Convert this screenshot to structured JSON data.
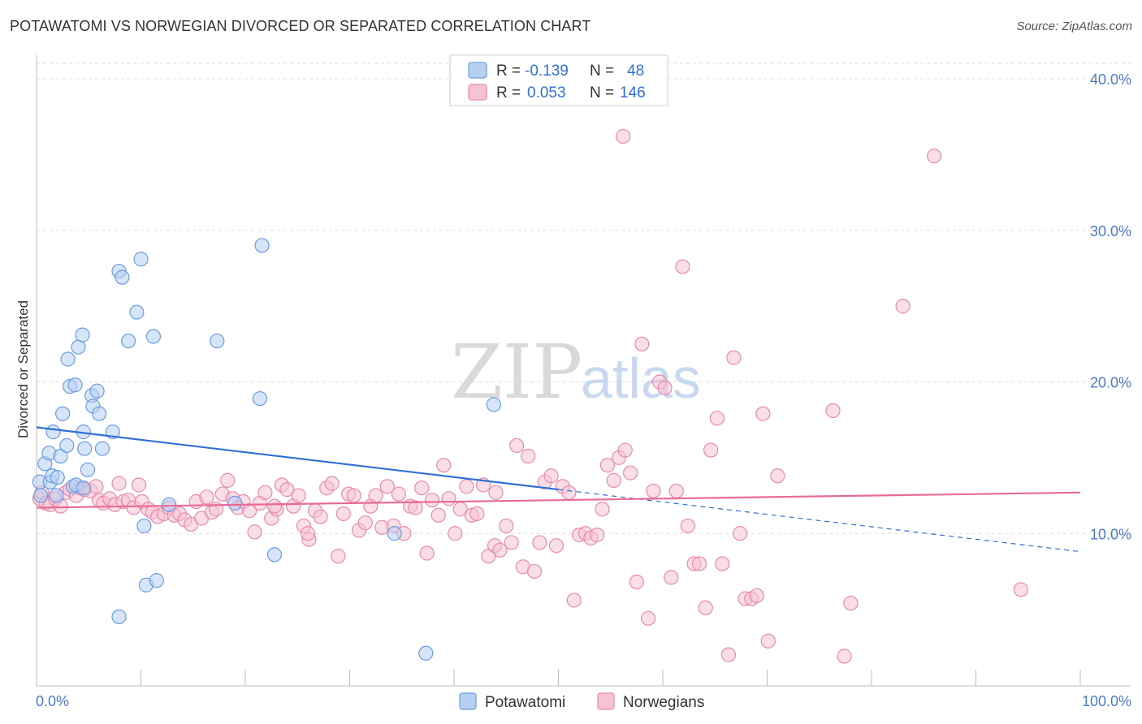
{
  "header": {
    "title": "POTAWATOMI VS NORWEGIAN DIVORCED OR SEPARATED CORRELATION CHART",
    "source": "Source: ZipAtlas.com"
  },
  "watermark": {
    "zip": "ZIP",
    "atlas": "atlas"
  },
  "colors": {
    "blue_fill": "#b7d0f2",
    "blue_stroke": "#6a9de0",
    "blue_line": "#2f6fd6",
    "pink_fill": "#f6c3d4",
    "pink_stroke": "#e78aac",
    "pink_line": "#e86a9a",
    "grid": "#dddddd",
    "tick_label": "#4a7cc9"
  },
  "legend_top": {
    "rows": [
      {
        "r_label": "R =",
        "r_value": "-0.139",
        "n_label": "N =",
        "n_value": "48"
      },
      {
        "r_label": "R =",
        "r_value": "0.053",
        "n_label": "N =",
        "n_value": "146"
      }
    ]
  },
  "legend_bottom": {
    "items": [
      "Potawatomi",
      "Norwegians"
    ]
  },
  "chart_data": {
    "type": "scatter",
    "title": "POTAWATOMI VS NORWEGIAN DIVORCED OR SEPARATED CORRELATION CHART",
    "xlabel": "",
    "ylabel": "Divorced or Separated",
    "xlim": [
      0,
      100
    ],
    "ylim": [
      0,
      40
    ],
    "y_ticks": [
      "10.0%",
      "20.0%",
      "30.0%",
      "40.0%"
    ],
    "x_tick_labels": [
      "0.0%",
      "100.0%"
    ],
    "grid": true,
    "legend_position": "top-center",
    "series": [
      {
        "name": "Potawatomi",
        "color": "#6a9de0",
        "trend": {
          "x0": 0,
          "y0": 17.0,
          "x1": 50,
          "y1": 12.9,
          "dashed_to_x": 100,
          "dashed_to_y": 8.8
        },
        "points": [
          [
            0.3,
            13.4
          ],
          [
            0.4,
            12.5
          ],
          [
            0.8,
            14.6
          ],
          [
            1.2,
            15.3
          ],
          [
            1.3,
            13.4
          ],
          [
            1.5,
            13.8
          ],
          [
            1.6,
            16.7
          ],
          [
            1.9,
            12.5
          ],
          [
            2.0,
            13.7
          ],
          [
            2.3,
            15.1
          ],
          [
            2.5,
            17.9
          ],
          [
            2.9,
            15.8
          ],
          [
            3.0,
            21.5
          ],
          [
            3.2,
            19.7
          ],
          [
            3.5,
            13.1
          ],
          [
            3.7,
            19.8
          ],
          [
            3.8,
            13.2
          ],
          [
            4.0,
            22.3
          ],
          [
            4.5,
            13.0
          ],
          [
            4.4,
            23.1
          ],
          [
            4.5,
            16.7
          ],
          [
            4.6,
            15.6
          ],
          [
            4.9,
            14.2
          ],
          [
            5.3,
            19.1
          ],
          [
            5.4,
            18.4
          ],
          [
            5.8,
            19.4
          ],
          [
            6.3,
            15.6
          ],
          [
            6.0,
            17.9
          ],
          [
            7.3,
            16.7
          ],
          [
            7.9,
            27.3
          ],
          [
            8.2,
            26.9
          ],
          [
            8.8,
            22.7
          ],
          [
            9.6,
            24.6
          ],
          [
            10.0,
            28.1
          ],
          [
            10.3,
            10.5
          ],
          [
            10.5,
            6.6
          ],
          [
            11.2,
            23.0
          ],
          [
            11.5,
            6.9
          ],
          [
            7.9,
            4.5
          ],
          [
            12.7,
            11.9
          ],
          [
            17.3,
            22.7
          ],
          [
            21.4,
            18.9
          ],
          [
            21.6,
            29.0
          ],
          [
            22.8,
            8.6
          ],
          [
            34.3,
            10.0
          ],
          [
            37.3,
            2.1
          ],
          [
            43.8,
            18.5
          ],
          [
            19.0,
            12.0
          ]
        ]
      },
      {
        "name": "Norwegians",
        "color": "#e78aac",
        "trend": {
          "x0": 0,
          "y0": 11.7,
          "x1": 100,
          "y1": 12.7
        },
        "points": [
          [
            0.3,
            12.3
          ],
          [
            0.5,
            12.7
          ],
          [
            0.9,
            12.0
          ],
          [
            1.3,
            11.9
          ],
          [
            1.8,
            12.3
          ],
          [
            2.3,
            11.8
          ],
          [
            2.8,
            12.7
          ],
          [
            3.2,
            12.9
          ],
          [
            3.8,
            12.5
          ],
          [
            4.2,
            13.0
          ],
          [
            4.6,
            12.9
          ],
          [
            5.2,
            12.8
          ],
          [
            5.7,
            13.1
          ],
          [
            6.0,
            12.2
          ],
          [
            6.4,
            12.0
          ],
          [
            7.0,
            12.3
          ],
          [
            7.5,
            11.9
          ],
          [
            7.9,
            13.3
          ],
          [
            8.3,
            12.1
          ],
          [
            8.8,
            12.2
          ],
          [
            9.3,
            11.7
          ],
          [
            9.8,
            13.2
          ],
          [
            10.1,
            12.1
          ],
          [
            10.7,
            11.6
          ],
          [
            11.1,
            11.4
          ],
          [
            11.6,
            11.1
          ],
          [
            12.2,
            11.3
          ],
          [
            12.7,
            11.7
          ],
          [
            13.2,
            11.2
          ],
          [
            13.7,
            11.3
          ],
          [
            14.2,
            10.9
          ],
          [
            14.8,
            10.6
          ],
          [
            15.3,
            12.1
          ],
          [
            15.8,
            11.0
          ],
          [
            16.3,
            12.4
          ],
          [
            16.8,
            11.4
          ],
          [
            17.2,
            11.6
          ],
          [
            17.8,
            12.6
          ],
          [
            18.3,
            13.5
          ],
          [
            18.8,
            12.3
          ],
          [
            19.3,
            11.7
          ],
          [
            19.8,
            12.1
          ],
          [
            20.4,
            11.5
          ],
          [
            20.9,
            10.1
          ],
          [
            21.4,
            12.0
          ],
          [
            21.9,
            12.7
          ],
          [
            22.5,
            11.0
          ],
          [
            23.0,
            11.6
          ],
          [
            23.5,
            13.2
          ],
          [
            24.0,
            12.9
          ],
          [
            24.6,
            11.8
          ],
          [
            25.1,
            12.5
          ],
          [
            25.6,
            10.5
          ],
          [
            26.1,
            9.6
          ],
          [
            26.7,
            11.5
          ],
          [
            27.2,
            11.1
          ],
          [
            27.8,
            13.0
          ],
          [
            28.3,
            13.3
          ],
          [
            28.9,
            8.5
          ],
          [
            29.4,
            11.3
          ],
          [
            29.9,
            12.6
          ],
          [
            30.4,
            12.5
          ],
          [
            30.9,
            10.2
          ],
          [
            31.5,
            10.7
          ],
          [
            32.0,
            11.8
          ],
          [
            32.5,
            12.5
          ],
          [
            33.1,
            10.4
          ],
          [
            33.6,
            13.1
          ],
          [
            34.2,
            10.5
          ],
          [
            34.7,
            12.6
          ],
          [
            35.2,
            10.0
          ],
          [
            35.8,
            11.8
          ],
          [
            36.3,
            11.7
          ],
          [
            36.9,
            13.0
          ],
          [
            37.4,
            8.7
          ],
          [
            37.9,
            12.2
          ],
          [
            38.5,
            11.2
          ],
          [
            39.0,
            14.5
          ],
          [
            39.5,
            12.3
          ],
          [
            40.1,
            10.0
          ],
          [
            40.6,
            11.6
          ],
          [
            41.2,
            13.1
          ],
          [
            41.7,
            11.2
          ],
          [
            42.2,
            11.3
          ],
          [
            42.8,
            13.2
          ],
          [
            43.3,
            8.5
          ],
          [
            43.9,
            9.2
          ],
          [
            44.4,
            8.9
          ],
          [
            45.0,
            10.5
          ],
          [
            45.5,
            9.4
          ],
          [
            46.0,
            15.8
          ],
          [
            46.6,
            7.8
          ],
          [
            47.1,
            15.1
          ],
          [
            47.7,
            7.5
          ],
          [
            48.2,
            9.4
          ],
          [
            48.7,
            13.4
          ],
          [
            49.3,
            13.8
          ],
          [
            49.8,
            9.2
          ],
          [
            50.4,
            13.1
          ],
          [
            51.0,
            12.7
          ],
          [
            51.5,
            5.6
          ],
          [
            52.0,
            9.9
          ],
          [
            52.6,
            10.0
          ],
          [
            53.1,
            9.7
          ],
          [
            53.7,
            9.9
          ],
          [
            54.2,
            11.6
          ],
          [
            54.7,
            14.5
          ],
          [
            55.3,
            13.5
          ],
          [
            55.8,
            15.0
          ],
          [
            56.4,
            15.5
          ],
          [
            56.9,
            14.0
          ],
          [
            57.5,
            6.8
          ],
          [
            58.0,
            22.5
          ],
          [
            58.6,
            4.4
          ],
          [
            59.1,
            12.8
          ],
          [
            59.7,
            20.0
          ],
          [
            60.2,
            19.6
          ],
          [
            60.8,
            7.1
          ],
          [
            61.3,
            12.8
          ],
          [
            61.9,
            27.6
          ],
          [
            62.4,
            10.5
          ],
          [
            63.0,
            8.0
          ],
          [
            63.5,
            8.0
          ],
          [
            64.1,
            5.1
          ],
          [
            64.6,
            15.5
          ],
          [
            65.2,
            17.6
          ],
          [
            65.7,
            8.0
          ],
          [
            66.3,
            2.0
          ],
          [
            66.8,
            21.6
          ],
          [
            67.4,
            10.0
          ],
          [
            67.9,
            5.7
          ],
          [
            68.5,
            5.7
          ],
          [
            69.0,
            5.9
          ],
          [
            69.6,
            17.9
          ],
          [
            70.1,
            2.9
          ],
          [
            71.0,
            13.8
          ],
          [
            76.3,
            18.1
          ],
          [
            78.0,
            5.4
          ],
          [
            77.4,
            1.9
          ],
          [
            86.0,
            34.9
          ],
          [
            83.0,
            25.0
          ],
          [
            56.2,
            36.2
          ],
          [
            94.3,
            6.3
          ],
          [
            22.8,
            11.8
          ],
          [
            44.0,
            12.7
          ],
          [
            26.0,
            10.0
          ]
        ]
      }
    ]
  }
}
